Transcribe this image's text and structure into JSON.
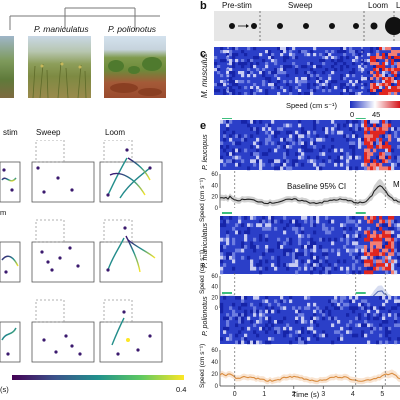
{
  "panel_b": {
    "letter": "b",
    "stages": [
      "Pre-stim",
      "Sweep",
      "Loom",
      "L"
    ]
  },
  "panel_c": {
    "letter": "c",
    "species": "M. musculus",
    "colorbar_label": "Speed (cm s⁻¹)",
    "colorbar_min": "0",
    "colorbar_max": "45"
  },
  "panel_e": {
    "letter": "e",
    "species": [
      "P. leucopus",
      "P. maniculatus",
      "P. polionotus"
    ],
    "speed_label": "Speed (cm s⁻¹)",
    "baseline_label": "Baseline 95% CI",
    "baseline_suffix": "M",
    "time_label": "Time (s)",
    "time_ticks": [
      "0",
      "1",
      "2",
      "3",
      "4",
      "5"
    ],
    "speed_ticks": [
      "60",
      "40",
      "20",
      "0"
    ],
    "colors": {
      "black": "#222222",
      "blue": "#5a6fb8",
      "orange": "#d98c3f"
    }
  },
  "photos": {
    "labels": [
      "P. maniculatus",
      "P. polionotus"
    ],
    "label_colors": [
      "#4a5fa8",
      "#d4891e"
    ]
  },
  "trajectories": {
    "columns": [
      "stim",
      "Sweep",
      "Loom"
    ],
    "side_label": "m",
    "colorbar_unit": "(s)",
    "colorbar_max": "0.4"
  }
}
